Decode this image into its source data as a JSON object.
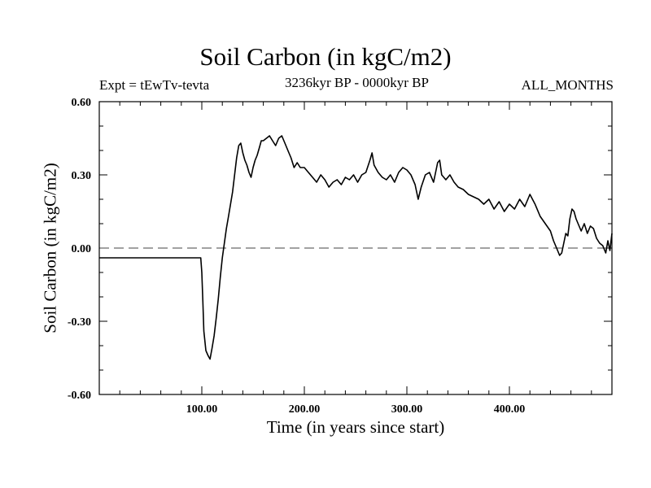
{
  "chart_data": {
    "type": "line",
    "title": "Soil Carbon (in kgC/m2)",
    "subtitle_left": "Expt = tEwTv-tevta",
    "subtitle_center": "3236kyr BP - 0000kyr BP",
    "subtitle_right": "ALL_MONTHS",
    "xlabel": "Time (in years since start)",
    "ylabel": "Soil Carbon (in kgC/m2)",
    "xlim": [
      0,
      500
    ],
    "ylim": [
      -0.6,
      0.6
    ],
    "x_ticks": [
      100,
      200,
      300,
      400
    ],
    "x_tick_labels": [
      "100.00",
      "200.00",
      "300.00",
      "400.00"
    ],
    "y_ticks": [
      -0.6,
      -0.3,
      0.0,
      0.3,
      0.6
    ],
    "y_tick_labels": [
      "-0.60",
      "-0.30",
      "0.00",
      "0.30",
      "0.60"
    ],
    "reference_line": {
      "y": 0.0,
      "style": "dashed"
    },
    "series": [
      {
        "name": "Soil Carbon",
        "x": [
          0,
          99,
          100,
          101,
          102,
          104,
          106,
          108,
          110,
          112,
          114,
          116,
          118,
          120,
          122,
          124,
          126,
          128,
          130,
          132,
          134,
          136,
          138,
          140,
          142,
          144,
          146,
          148,
          150,
          152,
          154,
          156,
          158,
          160,
          163,
          166,
          169,
          172,
          175,
          178,
          181,
          184,
          187,
          190,
          193,
          196,
          200,
          204,
          208,
          212,
          216,
          220,
          224,
          228,
          232,
          236,
          240,
          244,
          248,
          252,
          256,
          260,
          264,
          266,
          268,
          272,
          276,
          280,
          284,
          288,
          292,
          296,
          300,
          304,
          308,
          311,
          314,
          318,
          322,
          326,
          330,
          332,
          334,
          338,
          342,
          346,
          350,
          355,
          360,
          365,
          370,
          375,
          380,
          385,
          390,
          395,
          400,
          405,
          410,
          415,
          420,
          425,
          430,
          435,
          440,
          443,
          446,
          449,
          451,
          453,
          455,
          457,
          459,
          461,
          463,
          465,
          467,
          470,
          473,
          476,
          479,
          482,
          485,
          488,
          491,
          494,
          496,
          498,
          500
        ],
        "y": [
          -0.04,
          -0.04,
          -0.1,
          -0.22,
          -0.34,
          -0.42,
          -0.44,
          -0.455,
          -0.41,
          -0.36,
          -0.29,
          -0.21,
          -0.12,
          -0.04,
          0.02,
          0.08,
          0.13,
          0.18,
          0.23,
          0.3,
          0.37,
          0.42,
          0.43,
          0.39,
          0.36,
          0.34,
          0.31,
          0.29,
          0.33,
          0.36,
          0.38,
          0.41,
          0.44,
          0.44,
          0.45,
          0.46,
          0.44,
          0.42,
          0.45,
          0.46,
          0.43,
          0.4,
          0.37,
          0.33,
          0.35,
          0.33,
          0.33,
          0.31,
          0.29,
          0.27,
          0.3,
          0.28,
          0.25,
          0.27,
          0.28,
          0.26,
          0.29,
          0.28,
          0.3,
          0.27,
          0.3,
          0.31,
          0.36,
          0.39,
          0.34,
          0.31,
          0.29,
          0.28,
          0.3,
          0.27,
          0.31,
          0.33,
          0.32,
          0.3,
          0.26,
          0.2,
          0.25,
          0.3,
          0.31,
          0.27,
          0.35,
          0.36,
          0.3,
          0.28,
          0.3,
          0.27,
          0.25,
          0.24,
          0.22,
          0.21,
          0.2,
          0.18,
          0.2,
          0.16,
          0.19,
          0.15,
          0.18,
          0.16,
          0.2,
          0.17,
          0.22,
          0.18,
          0.13,
          0.1,
          0.07,
          0.03,
          0.0,
          -0.03,
          -0.02,
          0.02,
          0.06,
          0.05,
          0.12,
          0.16,
          0.15,
          0.12,
          0.1,
          0.07,
          0.1,
          0.06,
          0.09,
          0.08,
          0.04,
          0.02,
          0.01,
          -0.02,
          0.03,
          -0.01,
          0.06
        ]
      }
    ]
  }
}
